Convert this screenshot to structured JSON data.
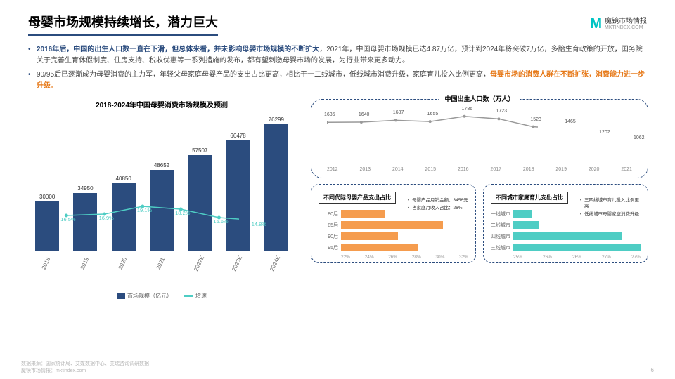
{
  "header": {
    "title": "母婴市场规模持续增长，潜力巨大",
    "logo_main": "魔镜市场情报",
    "logo_sub": "MKTINDEX.COM"
  },
  "bullets": [
    {
      "hl1": "2016年后，中国的出生人口数一直在下滑，但总体来看，并未影响母婴市场规模的不断扩大",
      "rest": "，2021年，中国母婴市场规模已达4.87万亿，预计到2024年将突破7万亿，多胎生育政策的开放，国务院关于完善生育休假制度、住房支持、税收优惠等一系列措施的发布，都有望刺激母婴市场的发展，为行业带来更多动力。"
    },
    {
      "plain": "90/95后已逐渐成为母婴消费的主力军，年轻父母家庭母婴产品的支出占比更高，相比于一二线城市，低线城市消费升级，家庭育儿投入比例更高，",
      "hl2": "母婴市场的消费人群在不断扩张，消费能力进一步升级。"
    }
  ],
  "bar_chart": {
    "title": "2018-2024年中国母婴消费市场规模及预测",
    "years": [
      "2018",
      "2019",
      "2020",
      "2021",
      "2022E",
      "2023E",
      "2024E"
    ],
    "values": [
      30000,
      34950,
      40850,
      48652,
      57507,
      66478,
      76299
    ],
    "growth": [
      "16.5%",
      "16.9%",
      "19.1%",
      "18.2%",
      "15.6%",
      "14.8%"
    ],
    "growth_y": [
      155,
      153,
      142,
      146,
      158,
      162
    ],
    "bar_color": "#2b4c7e",
    "line_color": "#4ecdc4",
    "max": 80000,
    "legend": [
      "市场规模（亿元）",
      "增速"
    ]
  },
  "birth": {
    "title": "中国出生人口数（万人）",
    "years": [
      "2012",
      "2013",
      "2014",
      "2015",
      "2016",
      "2017",
      "2018",
      "2019",
      "2020",
      "2021"
    ],
    "values": [
      1635,
      1640,
      1687,
      1655,
      1786,
      1723,
      1523,
      1465,
      1202,
      1062
    ],
    "color": "#999",
    "max": 1800,
    "min": 1000
  },
  "gen": {
    "title": "不同代际母婴产品支出占比",
    "cats": [
      "80后",
      "85后",
      "90后",
      "95后"
    ],
    "vals": [
      25.5,
      30,
      26.5,
      28
    ],
    "xmin": 22,
    "xmax": 32,
    "xticks": [
      "22%",
      "24%",
      "26%",
      "28%",
      "30%",
      "32%"
    ],
    "color": "#f59c4e",
    "notes": [
      "母婴产品月销金额：3456元",
      "占家庭月收入占比：26%"
    ]
  },
  "city": {
    "title": "不同城市家庭育儿支出占比",
    "cats": [
      "一线城市",
      "二线城市",
      "四线城市",
      "三线城市"
    ],
    "vals": [
      25.3,
      25.4,
      26.7,
      27.0
    ],
    "xmin": 25,
    "xmax": 27,
    "xticks": [
      "25%",
      "26%",
      "26%",
      "27%",
      "27%"
    ],
    "color": "#4ecdc4",
    "notes": [
      "三四线城市育儿投入比例更高",
      "低线城市母婴家庭消费升级"
    ]
  },
  "footer": {
    "src": "数据来源：国家统计局、艾媒数据中心、艾瑞咨询调研数据",
    "brand": "魔镜市场情报：mktindex.com",
    "page": "6"
  }
}
